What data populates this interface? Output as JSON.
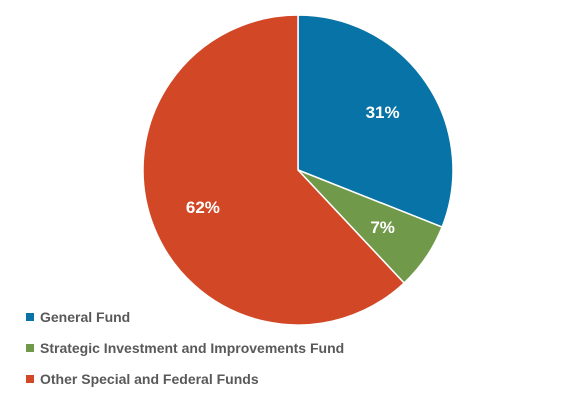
{
  "chart_data": {
    "type": "pie",
    "categories": [
      "General Fund",
      "Strategic Investment and Improvements Fund",
      "Other Special and Federal Funds"
    ],
    "values": [
      31,
      7,
      62
    ],
    "labels": [
      "31%",
      "7%",
      "62%"
    ],
    "colors": [
      "#0873a6",
      "#71994a",
      "#d24726"
    ],
    "start_angle": "12 o'clock",
    "direction": "clockwise",
    "legend_position": "bottom-left"
  }
}
